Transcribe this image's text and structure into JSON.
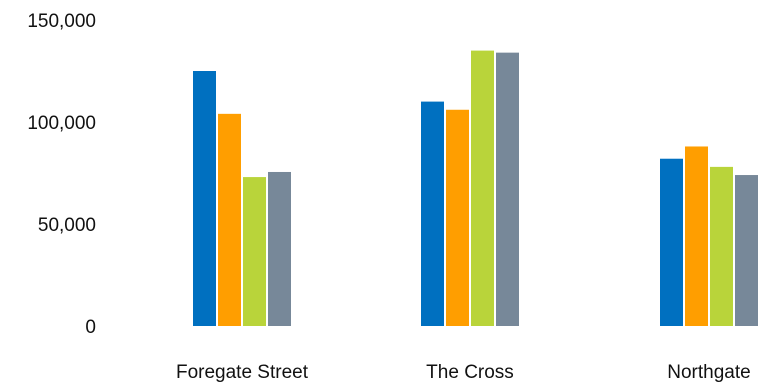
{
  "chart_data": {
    "type": "bar",
    "title": "",
    "xlabel": "",
    "ylabel": "",
    "categories": [
      "Foregate Street",
      "The Cross",
      "Northgate"
    ],
    "series": [
      {
        "color": "#0070C0",
        "values": [
          125000,
          110000,
          82000
        ]
      },
      {
        "color": "#FF9E00",
        "values": [
          104000,
          106000,
          88000
        ]
      },
      {
        "color": "#B9D43A",
        "values": [
          73000,
          135000,
          78000
        ]
      },
      {
        "color": "#778899",
        "values": [
          75500,
          134000,
          74000
        ]
      }
    ],
    "ylim": [
      0,
      150000
    ],
    "yticks": [
      0,
      50000,
      100000,
      150000
    ],
    "ytick_labels": [
      "0",
      "50,000",
      "100,000",
      "150,000"
    ],
    "grid": false,
    "legend": "none"
  }
}
